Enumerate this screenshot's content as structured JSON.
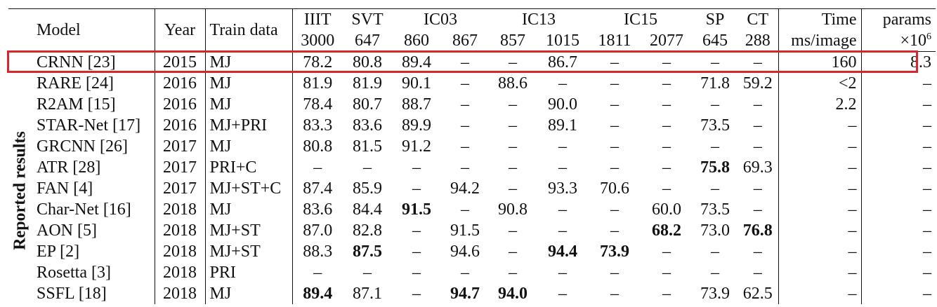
{
  "header": {
    "model": "Model",
    "year": "Year",
    "train": "Train data",
    "iiit": "IIIT",
    "iiit_n": "3000",
    "svt": "SVT",
    "svt_n": "647",
    "ic03": "IC03",
    "ic03_a": "860",
    "ic03_b": "867",
    "ic13": "IC13",
    "ic13_a": "857",
    "ic13_b": "1015",
    "ic15": "IC15",
    "ic15_a": "1811",
    "ic15_b": "2077",
    "sp": "SP",
    "sp_n": "645",
    "ct": "CT",
    "ct_n": "288",
    "time": "Time",
    "time_unit": "ms/image",
    "params": "params",
    "params_unit": "×10",
    "params_exp": "6"
  },
  "side_label": "Reported results",
  "rows": [
    [
      "CRNN [23]",
      "2015",
      "MJ",
      "78.2",
      "80.8",
      "89.4",
      "–",
      "–",
      "86.7",
      "–",
      "–",
      "–",
      "–",
      "160",
      "8.3"
    ],
    [
      "RARE [24]",
      "2016",
      "MJ",
      "81.9",
      "81.9",
      "90.1",
      "–",
      "88.6",
      "–",
      "–",
      "–",
      "71.8",
      "59.2",
      "<2",
      "–"
    ],
    [
      "R2AM [15]",
      "2016",
      "MJ",
      "78.4",
      "80.7",
      "88.7",
      "–",
      "–",
      "90.0",
      "–",
      "–",
      "–",
      "–",
      "2.2",
      "–"
    ],
    [
      "STAR-Net [17]",
      "2016",
      "MJ+PRI",
      "83.3",
      "83.6",
      "89.9",
      "–",
      "–",
      "89.1",
      "–",
      "–",
      "73.5",
      "–",
      "–",
      "–"
    ],
    [
      "GRCNN [26]",
      "2017",
      "MJ",
      "80.8",
      "81.5",
      "91.2",
      "–",
      "–",
      "–",
      "–",
      "–",
      "–",
      "–",
      "–",
      "–"
    ],
    [
      "ATR [28]",
      "2017",
      "PRI+C",
      "–",
      "–",
      "–",
      "–",
      "–",
      "–",
      "–",
      "–",
      "75.8",
      "69.3",
      "–",
      "–"
    ],
    [
      "FAN [4]",
      "2017",
      "MJ+ST+C",
      "87.4",
      "85.9",
      "–",
      "94.2",
      "–",
      "93.3",
      "70.6",
      "–",
      "–",
      "–",
      "–",
      "–"
    ],
    [
      "Char-Net [16]",
      "2018",
      "MJ",
      "83.6",
      "84.4",
      "91.5",
      "–",
      "90.8",
      "–",
      "–",
      "60.0",
      "73.5",
      "–",
      "–",
      "–"
    ],
    [
      "AON [5]",
      "2018",
      "MJ+ST",
      "87.0",
      "82.8",
      "–",
      "91.5",
      "–",
      "–",
      "–",
      "68.2",
      "73.0",
      "76.8",
      "–",
      "–"
    ],
    [
      "EP [2]",
      "2018",
      "MJ+ST",
      "88.3",
      "87.5",
      "–",
      "94.6",
      "–",
      "94.4",
      "73.9",
      "–",
      "–",
      "–",
      "–",
      "–"
    ],
    [
      "Rosetta [3]",
      "2018",
      "PRI",
      "–",
      "–",
      "–",
      "–",
      "–",
      "–",
      "–",
      "–",
      "–",
      "–",
      "–",
      "–"
    ],
    [
      "SSFL [18]",
      "2018",
      "MJ",
      "89.4",
      "87.1",
      "–",
      "94.7",
      "94.0",
      "–",
      "–",
      "–",
      "73.9",
      "62.5",
      "–",
      "–"
    ]
  ],
  "bold_cells": [
    [
      5,
      11
    ],
    [
      7,
      5
    ],
    [
      8,
      10
    ],
    [
      8,
      12
    ],
    [
      9,
      4
    ],
    [
      9,
      8
    ],
    [
      9,
      9
    ],
    [
      11,
      3
    ],
    [
      11,
      6
    ],
    [
      11,
      7
    ]
  ],
  "highlight_color": "#d9262c"
}
